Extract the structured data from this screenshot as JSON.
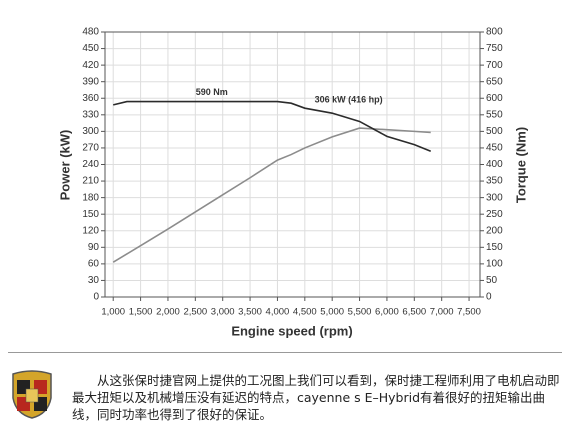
{
  "chart_data": {
    "type": "line",
    "x": [
      1000,
      1250,
      1500,
      2000,
      2500,
      3000,
      3500,
      4000,
      4250,
      4500,
      5000,
      5500,
      6000,
      6500,
      6800
    ],
    "series": [
      {
        "name": "Power",
        "color": "#8c8c8c",
        "axis": "y",
        "values": [
          63,
          78,
          93,
          123,
          154,
          185,
          216,
          248,
          258,
          270,
          290,
          306,
          303,
          300,
          298
        ]
      },
      {
        "name": "Torque",
        "color": "#2b2b2b",
        "axis": "y2",
        "values": [
          580,
          590,
          590,
          590,
          590,
          590,
          590,
          590,
          585,
          570,
          555,
          530,
          485,
          460,
          440
        ]
      }
    ],
    "annotations": [
      "590 Nm",
      "306 kW (416 hp)"
    ],
    "ylabel": "Power (kW)",
    "y2label": "Torque (Nm)",
    "xlabel": "Engine speed (rpm)",
    "xlim": [
      850,
      7700
    ],
    "ylim": [
      0,
      480
    ],
    "y2lim": [
      0,
      800
    ],
    "xticks": [
      {
        "value": 1000,
        "label": "1,000"
      },
      {
        "value": 1500,
        "label": "1,500"
      },
      {
        "value": 2000,
        "label": "2,000"
      },
      {
        "value": 2500,
        "label": "2,500"
      },
      {
        "value": 3000,
        "label": "3,000"
      },
      {
        "value": 3500,
        "label": "3,500"
      },
      {
        "value": 4000,
        "label": "4,000"
      },
      {
        "value": 4500,
        "label": "4,500"
      },
      {
        "value": 5000,
        "label": "5,000"
      },
      {
        "value": 5500,
        "label": "5,500"
      },
      {
        "value": 6000,
        "label": "6,000"
      },
      {
        "value": 6500,
        "label": "6,500"
      },
      {
        "value": 7000,
        "label": "7,000"
      },
      {
        "value": 7500,
        "label": "7,500"
      }
    ],
    "yticks": [
      0,
      30,
      60,
      90,
      120,
      150,
      180,
      210,
      240,
      270,
      300,
      330,
      360,
      390,
      420,
      450,
      480
    ],
    "y2ticks": [
      0,
      50,
      100,
      150,
      200,
      250,
      300,
      350,
      400,
      450,
      500,
      550,
      600,
      650,
      700,
      750,
      800
    ],
    "grid": true
  },
  "caption": "从这张保时捷官网上提供的工况图上我们可以看到，保时捷工程师利用了电机启动即最大扭矩以及机械增压没有延迟的特点，cayenne s E–Hybrid有着很好的扭矩输出曲线，同时功率也得到了很好的保证。"
}
